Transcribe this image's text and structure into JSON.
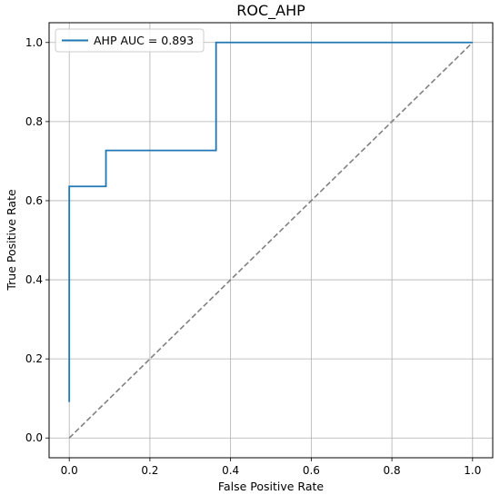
{
  "chart_data": {
    "type": "line",
    "title": "ROC_AHP",
    "xlabel": "False Positive Rate",
    "ylabel": "True Positive Rate",
    "xlim": [
      -0.05,
      1.05
    ],
    "ylim": [
      -0.05,
      1.05
    ],
    "x_ticks": [
      0.0,
      0.2,
      0.4,
      0.6,
      0.8,
      1.0
    ],
    "y_ticks": [
      0.0,
      0.2,
      0.4,
      0.6,
      0.8,
      1.0
    ],
    "x_tick_labels": [
      "0.0",
      "0.2",
      "0.4",
      "0.6",
      "0.8",
      "1.0"
    ],
    "y_tick_labels": [
      "0.0",
      "0.2",
      "0.4",
      "0.6",
      "0.8",
      "1.0"
    ],
    "grid": true,
    "legend_position": "upper-left",
    "series": [
      {
        "name": "AHP AUC = 0.893",
        "color": "#1f77b4",
        "style": "solid",
        "x": [
          0.0,
          0.0,
          0.0,
          0.091,
          0.091,
          0.364,
          0.364,
          1.0
        ],
        "y": [
          0.0909,
          0.636,
          0.636,
          0.636,
          0.727,
          0.727,
          1.0,
          1.0
        ]
      },
      {
        "color": "#808080",
        "style": "dashed",
        "x": [
          0.0,
          1.0
        ],
        "y": [
          0.0,
          1.0
        ]
      }
    ]
  }
}
